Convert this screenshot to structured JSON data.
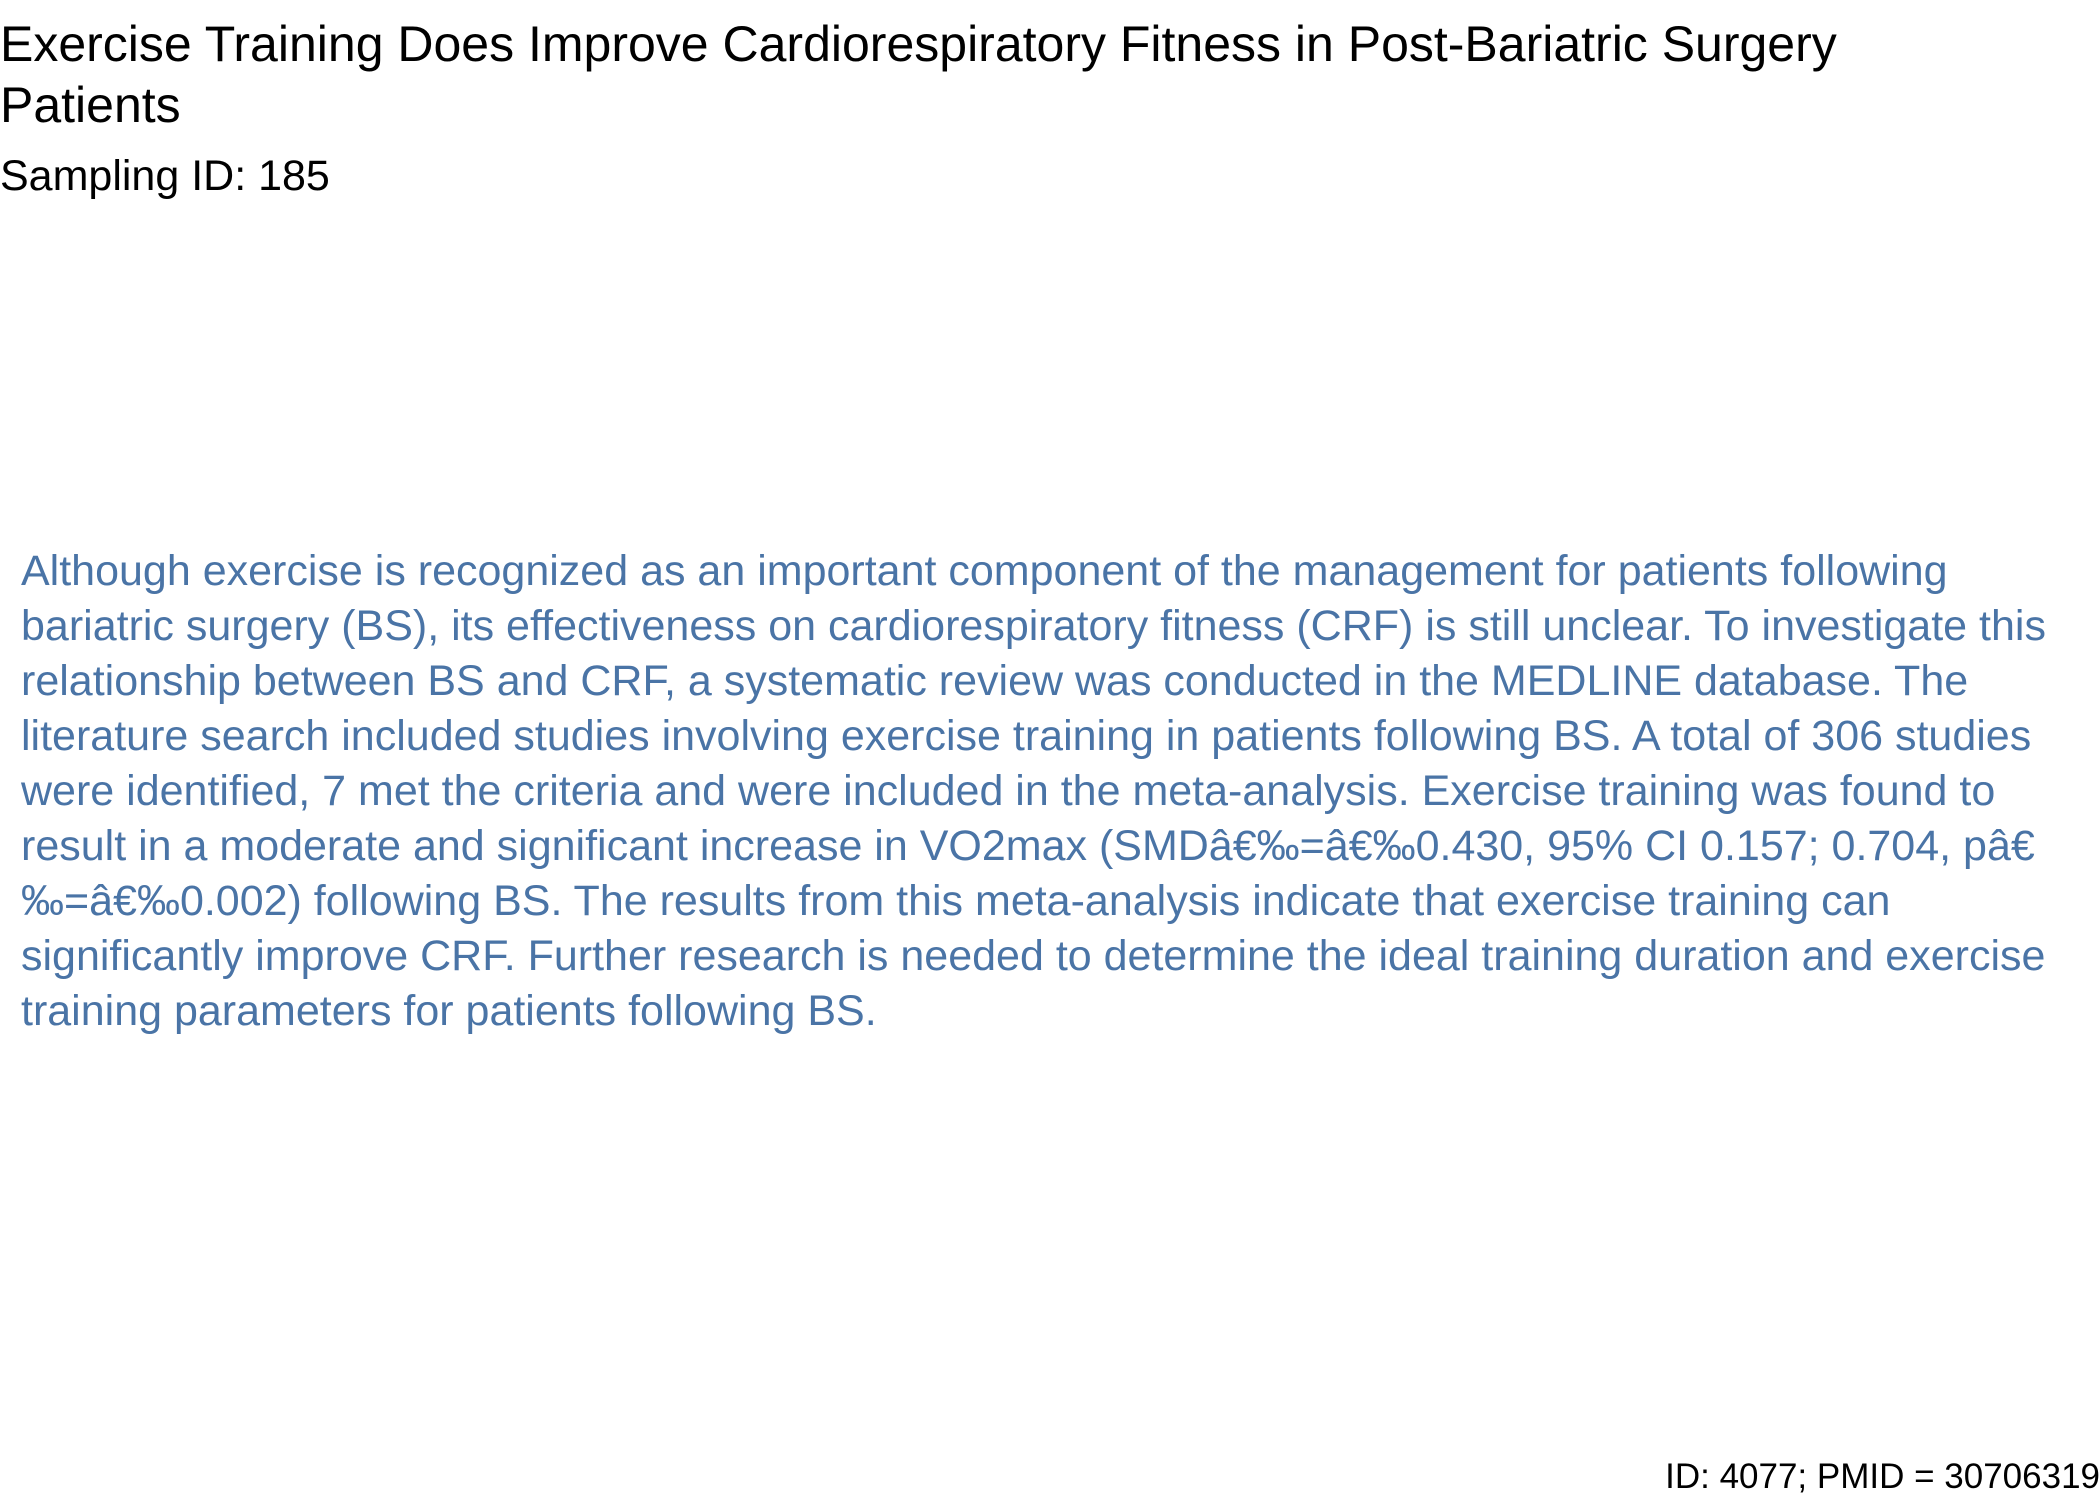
{
  "document": {
    "title": "Exercise Training Does Improve Cardiorespiratory Fitness in Post-Bariatric Surgery Patients",
    "sampling_id": "Sampling ID: 185",
    "abstract": "Although exercise is recognized as an important component of the management for patients following bariatric surgery (BS), its effectiveness on cardiorespiratory fitness (CRF) is still unclear. To investigate this relationship between BS and CRF, a systematic review was conducted in the MEDLINE database. The literature search included studies involving exercise training in patients following BS. A total of 306 studies were identified, 7 met the criteria and were included in the meta-analysis. Exercise training was found to result in a moderate and significant increase in VO2max (SMDâ€‰=â€‰0.430, 95% CI 0.157; 0.704, pâ€‰=â€‰0.002) following BS. The results from this meta-analysis indicate that exercise training can significantly improve CRF. Further research is needed to determine the ideal training duration and exercise training parameters for patients following BS.",
    "footer": "ID: 4077; PMID = 30706319"
  },
  "colors": {
    "title_text": "#000000",
    "abstract_text": "#4a74a6",
    "background": "#ffffff"
  }
}
